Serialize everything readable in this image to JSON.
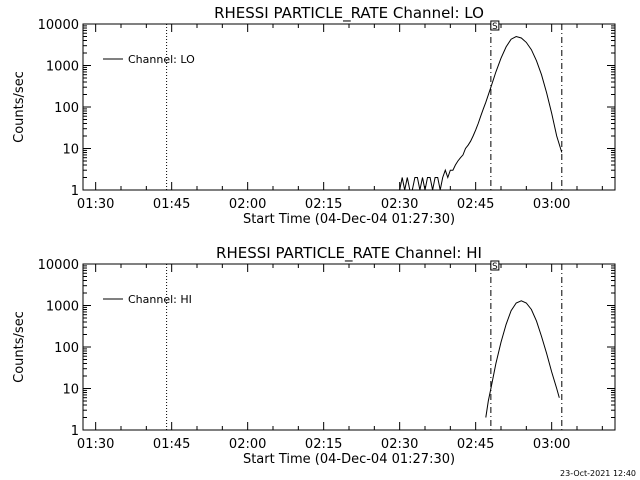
{
  "stamp": "23-Oct-2021 12:40",
  "chart_data": [
    {
      "type": "line",
      "title": "RHESSI PARTICLE_RATE Channel: LO",
      "xlabel": "Start Time (04-Dec-04 01:27:30)",
      "ylabel": "Counts/sec",
      "yscale": "log",
      "ylim": [
        1,
        10000
      ],
      "xlim_minutes": [
        87.5,
        192.5
      ],
      "x_tick_labels": [
        "01:30",
        "01:45",
        "02:00",
        "02:15",
        "02:30",
        "02:45",
        "03:00"
      ],
      "y_tick_labels": [
        "1",
        "10",
        "100",
        "1000",
        "10000"
      ],
      "legend": {
        "entry": "Channel: LO",
        "position": "top-left"
      },
      "markers": [
        {
          "time": "01:44",
          "style": "dotted"
        },
        {
          "time": "02:48",
          "style": "dash-dot",
          "flag": "S"
        },
        {
          "time": "03:02",
          "style": "dash-dot"
        }
      ],
      "series": [
        {
          "time_min": [
            150.0,
            150.5,
            151.0,
            151.5,
            152.0,
            152.5,
            153.0,
            153.5,
            154.0,
            154.5,
            155.0,
            155.5,
            156.0,
            156.5,
            157.0,
            157.5,
            158.0,
            158.5,
            159.0,
            159.5,
            160.0,
            160.5,
            161.0,
            161.5,
            162.0,
            162.5,
            163.0,
            163.5,
            164.0,
            164.5,
            165.0,
            165.5,
            166.0,
            166.5,
            167.0,
            168.0,
            169.0,
            170.0,
            171.0,
            172.0,
            173.0,
            174.0,
            175.0,
            176.0,
            177.0,
            178.0,
            179.0,
            180.0,
            181.0,
            182.0
          ],
          "values": [
            1,
            2,
            1,
            2,
            1,
            1,
            2,
            2,
            1,
            2,
            1,
            2,
            2,
            1,
            2,
            2,
            1,
            2,
            3,
            2,
            3,
            3,
            4,
            5,
            6,
            7,
            10,
            12,
            15,
            20,
            28,
            40,
            60,
            90,
            130,
            300,
            700,
            1500,
            2800,
            4300,
            5000,
            4600,
            3600,
            2400,
            1300,
            600,
            220,
            70,
            20,
            8
          ]
        }
      ]
    },
    {
      "type": "line",
      "title": "RHESSI PARTICLE_RATE Channel: HI",
      "xlabel": "Start Time (04-Dec-04 01:27:30)",
      "ylabel": "Counts/sec",
      "yscale": "log",
      "ylim": [
        1,
        10000
      ],
      "xlim_minutes": [
        87.5,
        192.5
      ],
      "x_tick_labels": [
        "01:30",
        "01:45",
        "02:00",
        "02:15",
        "02:30",
        "02:45",
        "03:00"
      ],
      "y_tick_labels": [
        "1",
        "10",
        "100",
        "1000",
        "10000"
      ],
      "legend": {
        "entry": "Channel: HI",
        "position": "top-left"
      },
      "markers": [
        {
          "time": "01:44",
          "style": "dotted"
        },
        {
          "time": "02:48",
          "style": "dash-dot",
          "flag": "S"
        },
        {
          "time": "03:02",
          "style": "dash-dot"
        }
      ],
      "series": [
        {
          "time_min": [
            167.0,
            167.5,
            168.0,
            169.0,
            170.0,
            171.0,
            172.0,
            173.0,
            174.0,
            175.0,
            176.0,
            177.0,
            178.0,
            179.0,
            180.0,
            181.0,
            181.5
          ],
          "values": [
            2,
            5,
            10,
            40,
            130,
            350,
            750,
            1150,
            1300,
            1150,
            800,
            420,
            180,
            70,
            25,
            10,
            6
          ]
        }
      ]
    }
  ]
}
